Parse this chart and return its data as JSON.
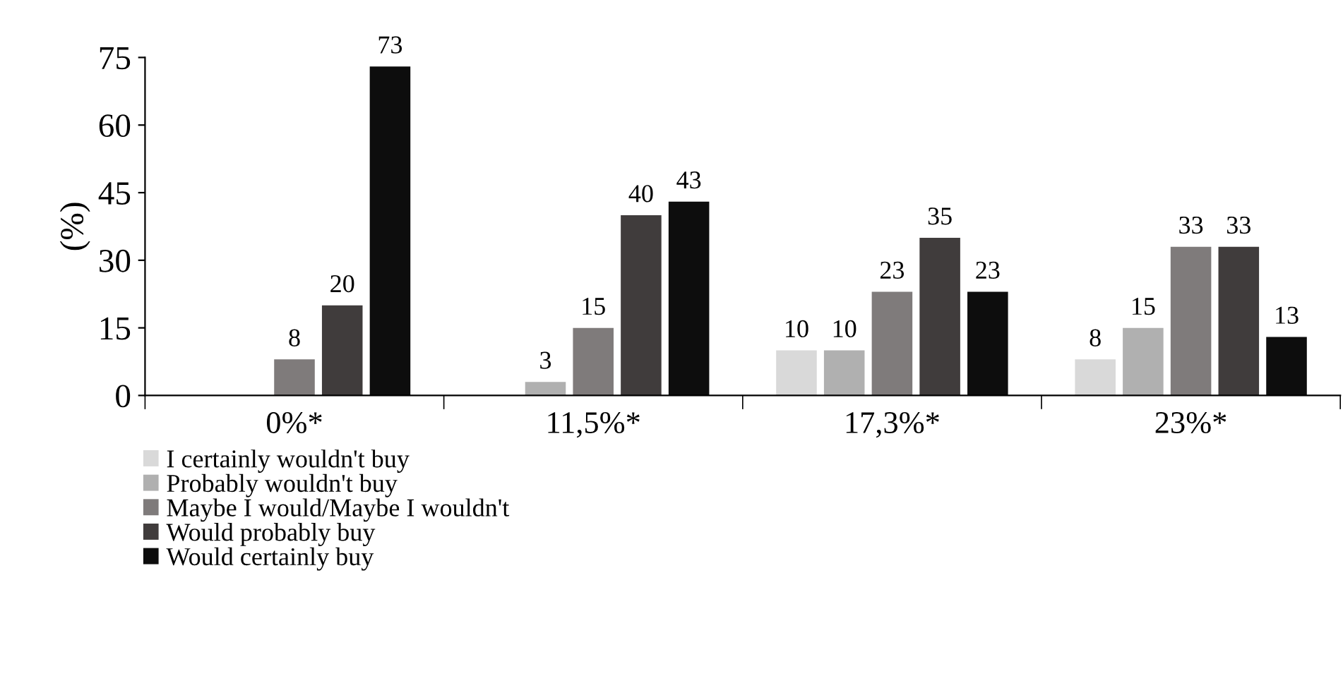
{
  "chart_data": {
    "type": "bar",
    "ylabel": "(%)",
    "categories": [
      "0%*",
      "11,5%*",
      "17,3%*",
      "23%*"
    ],
    "series": [
      {
        "name": "I certainly wouldn't buy",
        "color": "#d9d9d9",
        "values": [
          null,
          null,
          10,
          8
        ]
      },
      {
        "name": "Probably wouldn't buy",
        "color": "#b0b0b0",
        "values": [
          null,
          3,
          10,
          15
        ]
      },
      {
        "name": "Maybe I would/Maybe I wouldn't",
        "color": "#7f7b7b",
        "values": [
          8,
          15,
          23,
          33
        ]
      },
      {
        "name": "Would probably buy",
        "color": "#403c3c",
        "values": [
          20,
          40,
          35,
          33
        ]
      },
      {
        "name": "Would certainly buy",
        "color": "#0d0d0d",
        "values": [
          73,
          43,
          23,
          13
        ]
      }
    ],
    "ylim": [
      0,
      75
    ],
    "yticks": [
      0,
      15,
      30,
      45,
      60,
      75
    ],
    "data_labels": true,
    "grid": false,
    "legend": "bottom left"
  }
}
